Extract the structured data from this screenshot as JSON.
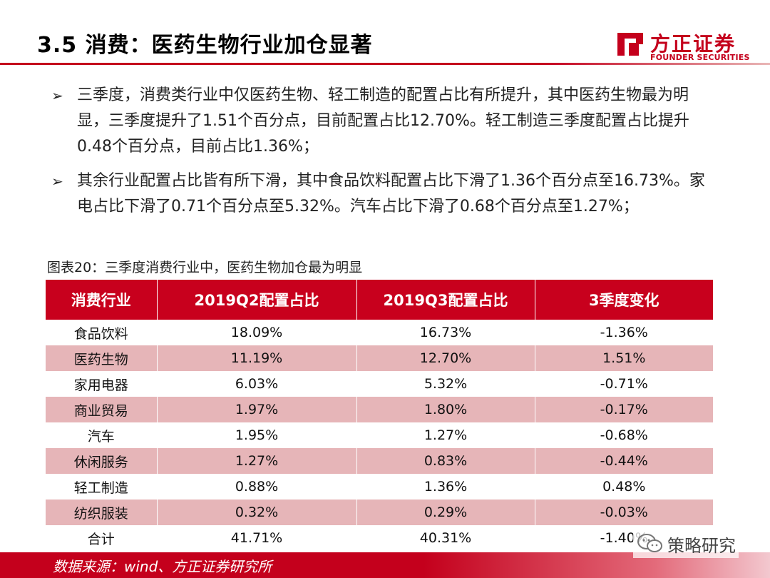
{
  "header": {
    "title": "3.5 消费：医药生物行业加仓显著",
    "logo_cn": "方正证券",
    "logo_en": "FOUNDER SECURITIES",
    "brand_color": "#c4001c"
  },
  "bullets": [
    {
      "icon": "arrow-right-icon",
      "text": "三季度，消费类行业中仅医药生物、轻工制造的配置占比有所提升，其中医药生物最为明显，三季度提升了1.51个百分点，目前配置占比12.70%。轻工制造三季度配置占比提升0.48个百分点，目前占比1.36%；"
    },
    {
      "icon": "arrow-right-icon",
      "text": "其余行业配置占比皆有所下滑，其中食品饮料配置占比下滑了1.36个百分点至16.73%。家电占比下滑了0.71个百分点至5.32%。汽车占比下滑了0.68个百分点至1.27%；"
    }
  ],
  "caption": "图表20：三季度消费行业中，医药生物加仓最为明显",
  "table": {
    "headers": [
      "消费行业",
      "2019Q2配置占比",
      "2019Q3配置占比",
      "3季度变化"
    ],
    "rows": [
      [
        "食品饮料",
        "18.09%",
        "16.73%",
        "-1.36%"
      ],
      [
        "医药生物",
        "11.19%",
        "12.70%",
        "1.51%"
      ],
      [
        "家用电器",
        "6.03%",
        "5.32%",
        "-0.71%"
      ],
      [
        "商业贸易",
        "1.97%",
        "1.80%",
        "-0.17%"
      ],
      [
        "汽车",
        "1.95%",
        "1.27%",
        "-0.68%"
      ],
      [
        "休闲服务",
        "1.27%",
        "0.83%",
        "-0.44%"
      ],
      [
        "轻工制造",
        "0.88%",
        "1.36%",
        "0.48%"
      ],
      [
        "纺织服装",
        "0.32%",
        "0.29%",
        "-0.03%"
      ],
      [
        "合计",
        "41.71%",
        "40.31%",
        "-1.40%"
      ]
    ]
  },
  "footer": {
    "source": "数据来源：wind、方正证券研究所"
  },
  "watermark": {
    "icon": "wechat-icon",
    "text": "策略研究"
  }
}
